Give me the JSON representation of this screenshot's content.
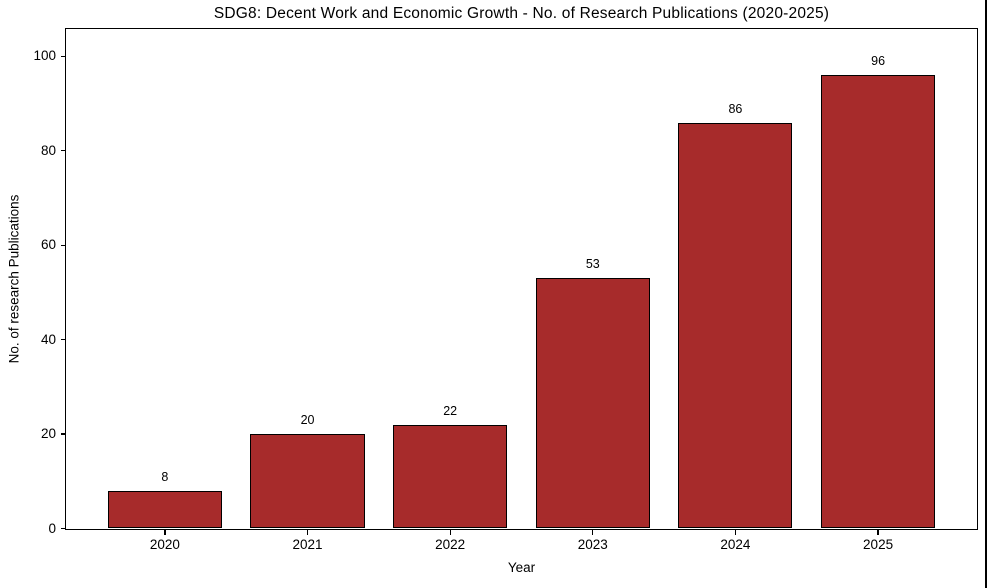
{
  "chart_data": {
    "type": "bar",
    "title": "SDG8: Decent Work and Economic Growth - No. of Research Publications (2020-2025)",
    "xlabel": "Year",
    "ylabel": "No. of research Publications",
    "categories": [
      "2020",
      "2021",
      "2022",
      "2023",
      "2024",
      "2025"
    ],
    "values": [
      8,
      20,
      22,
      53,
      86,
      96
    ],
    "bar_labels": [
      "8",
      "20",
      "22",
      "53",
      "86",
      "96"
    ],
    "yticks": [
      0,
      20,
      40,
      60,
      80,
      100
    ],
    "ylim": [
      0,
      105.7
    ],
    "bar_color": "#A72B2B",
    "bar_edge_color": "#000000",
    "text_color": "#000000",
    "background_color": "#ffffff",
    "grid": "off",
    "legend": "none",
    "window_edge_line_color": "#000000"
  }
}
